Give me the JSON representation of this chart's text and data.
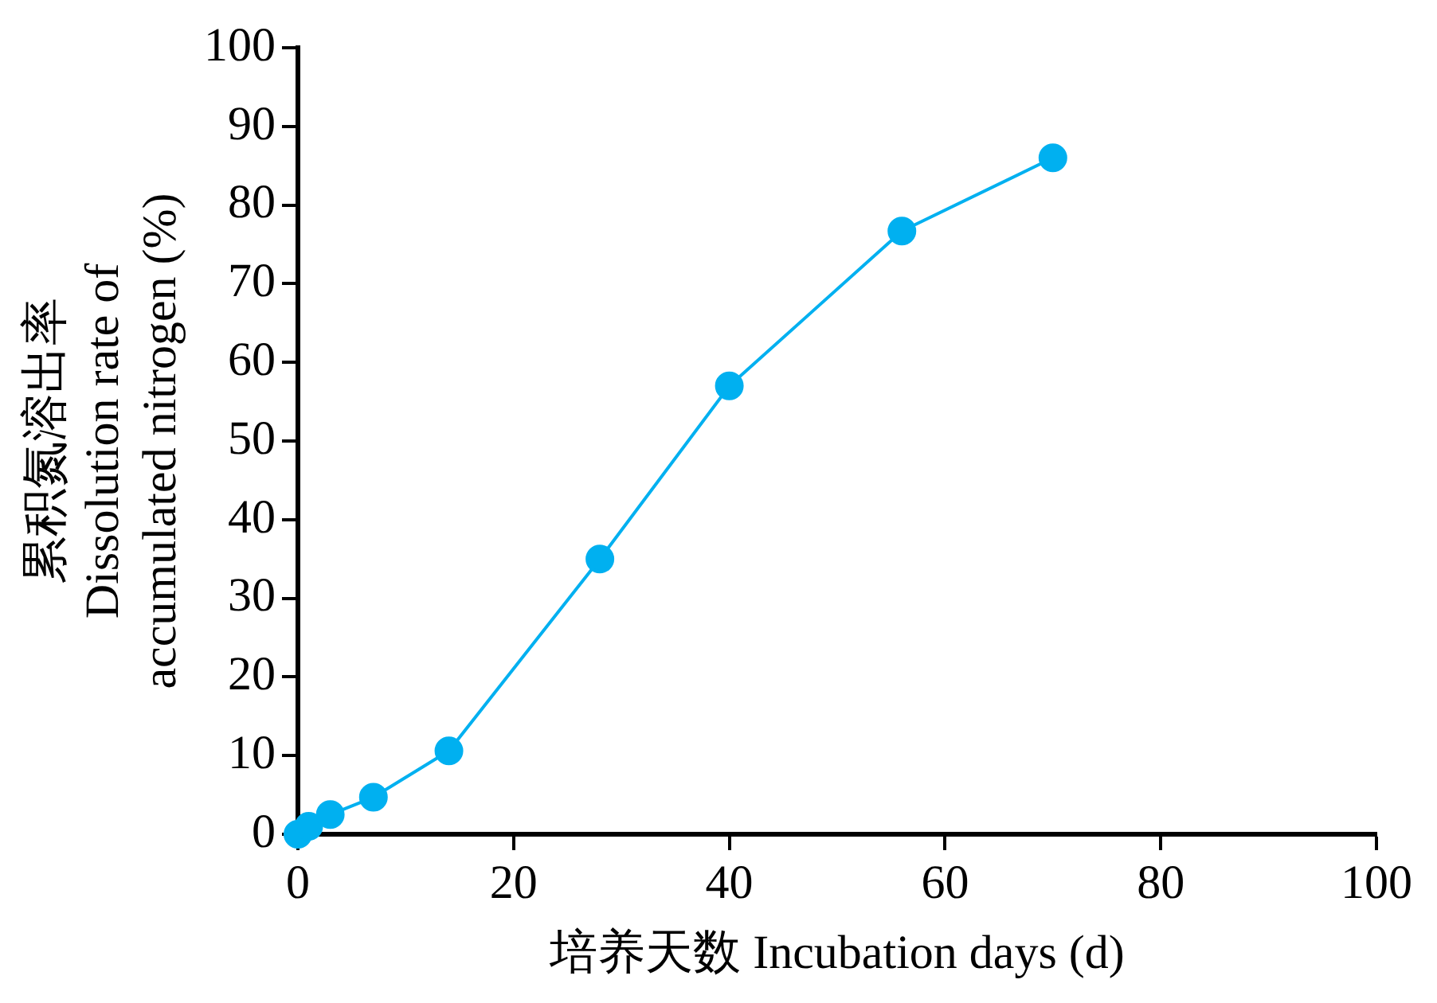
{
  "chart_data": {
    "type": "line",
    "xlabel": "培养天数 Incubation days (d)",
    "ylabel": "累积氮溶出率\nDissolution rate of\naccumulated nitrogen (%)",
    "x": [
      0,
      1,
      3,
      7,
      14,
      28,
      40,
      56,
      70
    ],
    "series": [
      {
        "color": "#00b0f0",
        "values": [
          0,
          1,
          2.5,
          4.7,
          10.6,
          35,
          57,
          76.7,
          86
        ]
      }
    ],
    "xlim": [
      0,
      100
    ],
    "xticks": [
      0,
      20,
      40,
      60,
      80,
      100
    ],
    "ylim": [
      0,
      100
    ],
    "yticks": [
      0,
      10,
      20,
      30,
      40,
      50,
      60,
      70,
      80,
      90,
      100
    ],
    "grid": false,
    "legend": false,
    "marker": "circle",
    "line_style": "solid"
  }
}
